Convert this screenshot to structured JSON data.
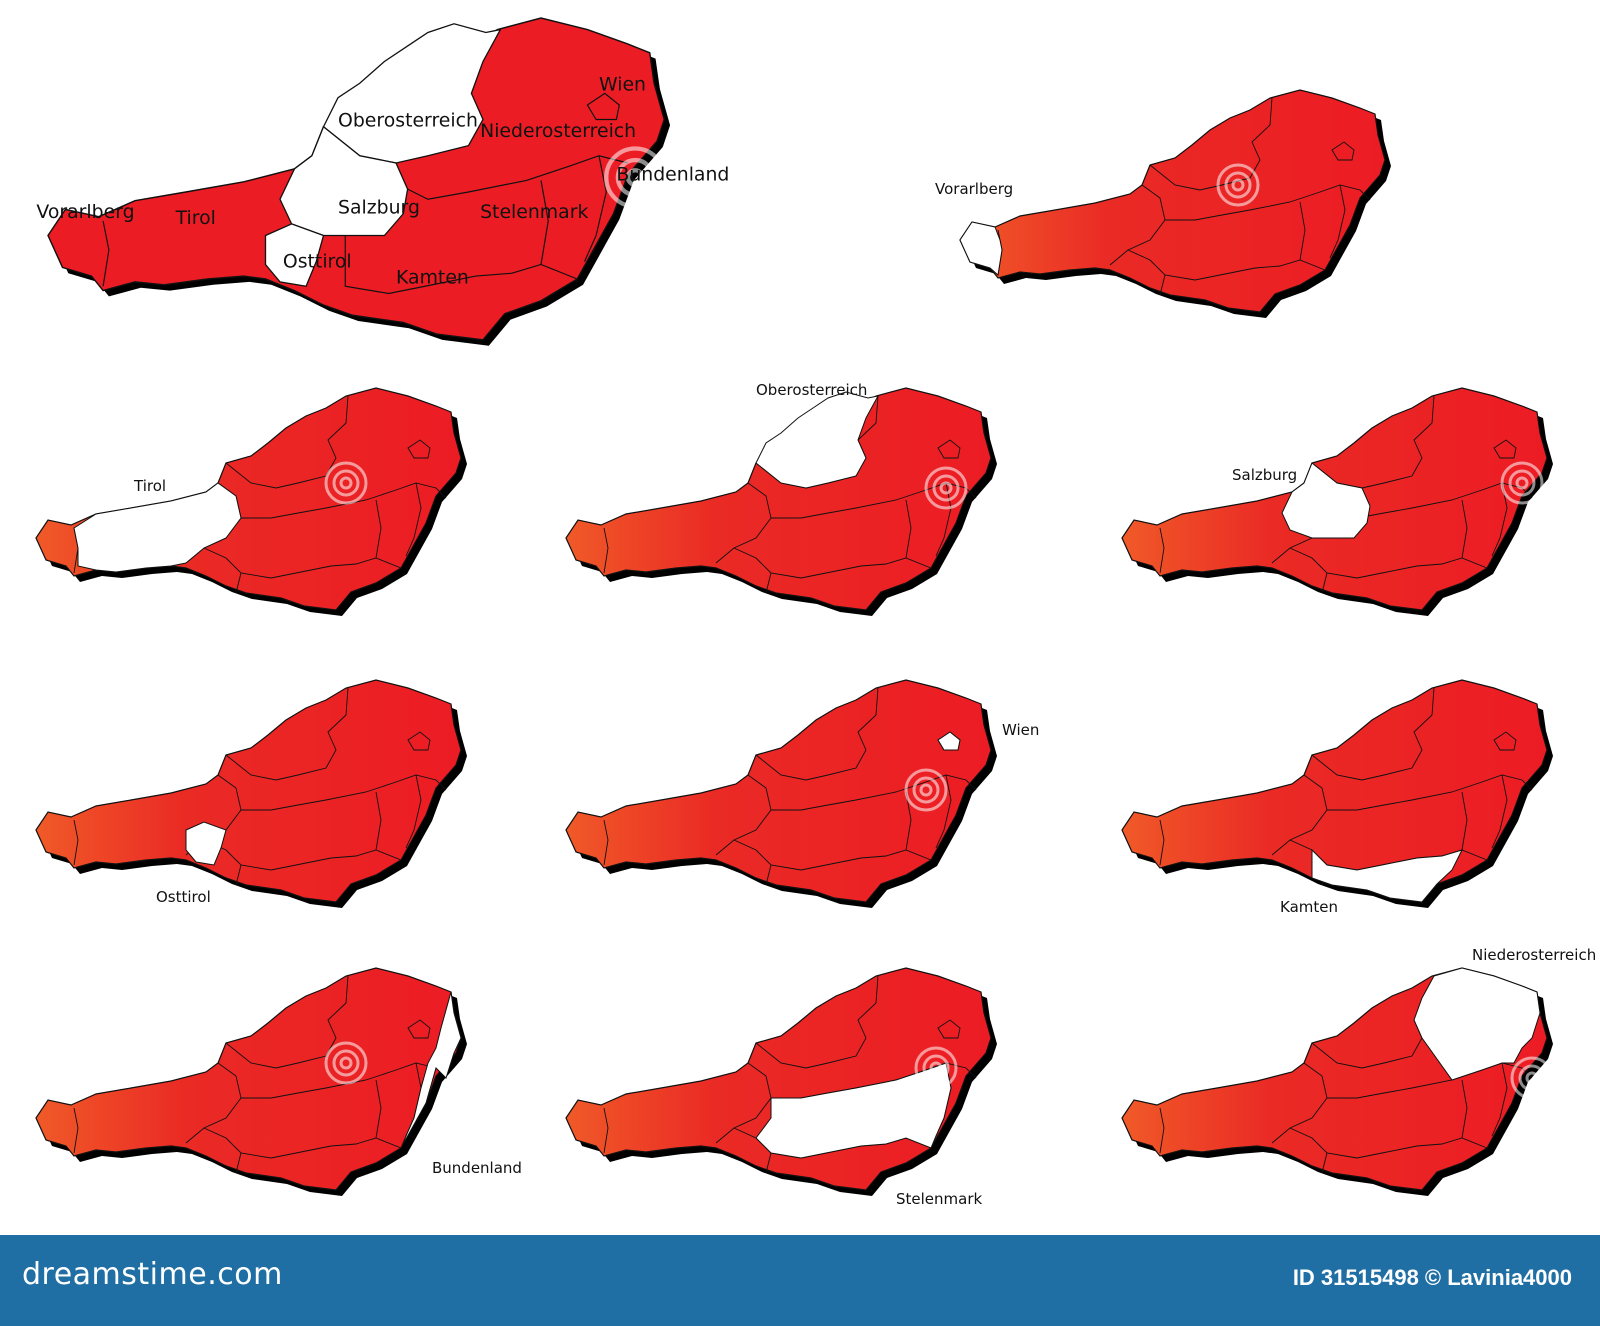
{
  "main_map": {
    "highlight_color": "#ff0000",
    "labels": {
      "vorarlberg": "Vorarlberg",
      "tirol": "Tirol",
      "salzburg": "Salzburg",
      "osttirol": "Osttirol",
      "oberosterreich": "Oberosterreich",
      "niederosterreich": "Niederosterreich",
      "wien": "Wien",
      "bundenland": "Bundenland",
      "stelenmark": "Stelenmark",
      "kamten": "Kamten"
    },
    "white_regions": [
      "Oberosterreich",
      "Salzburg",
      "Osttirol"
    ]
  },
  "small_maps": [
    {
      "label": "Vorarlberg",
      "highlighted_region": "Vorarlberg"
    },
    {
      "label": "Tirol",
      "highlighted_region": "Tirol"
    },
    {
      "label": "Oberosterreich",
      "highlighted_region": "Oberosterreich"
    },
    {
      "label": "Salzburg",
      "highlighted_region": "Salzburg"
    },
    {
      "label": "Osttirol",
      "highlighted_region": "Osttirol"
    },
    {
      "label": "Wien",
      "highlighted_region": "Wien"
    },
    {
      "label": "Kamten",
      "highlighted_region": "Kamten"
    },
    {
      "label": "Bundenland",
      "highlighted_region": "Bundenland"
    },
    {
      "label": "Stelenmark",
      "highlighted_region": "Stelenmark"
    },
    {
      "label": "Niederosterreich",
      "highlighted_region": "Niederosterreich"
    }
  ],
  "colors": {
    "red": "#ec1c24",
    "orange": "#f05a28",
    "highlight": "#ffffff",
    "outline": "#111111",
    "footer": "#1f6fa5"
  },
  "footer": {
    "brand": "dreamstime.com",
    "credit": "ID 31515498 © Lavinia4000"
  }
}
